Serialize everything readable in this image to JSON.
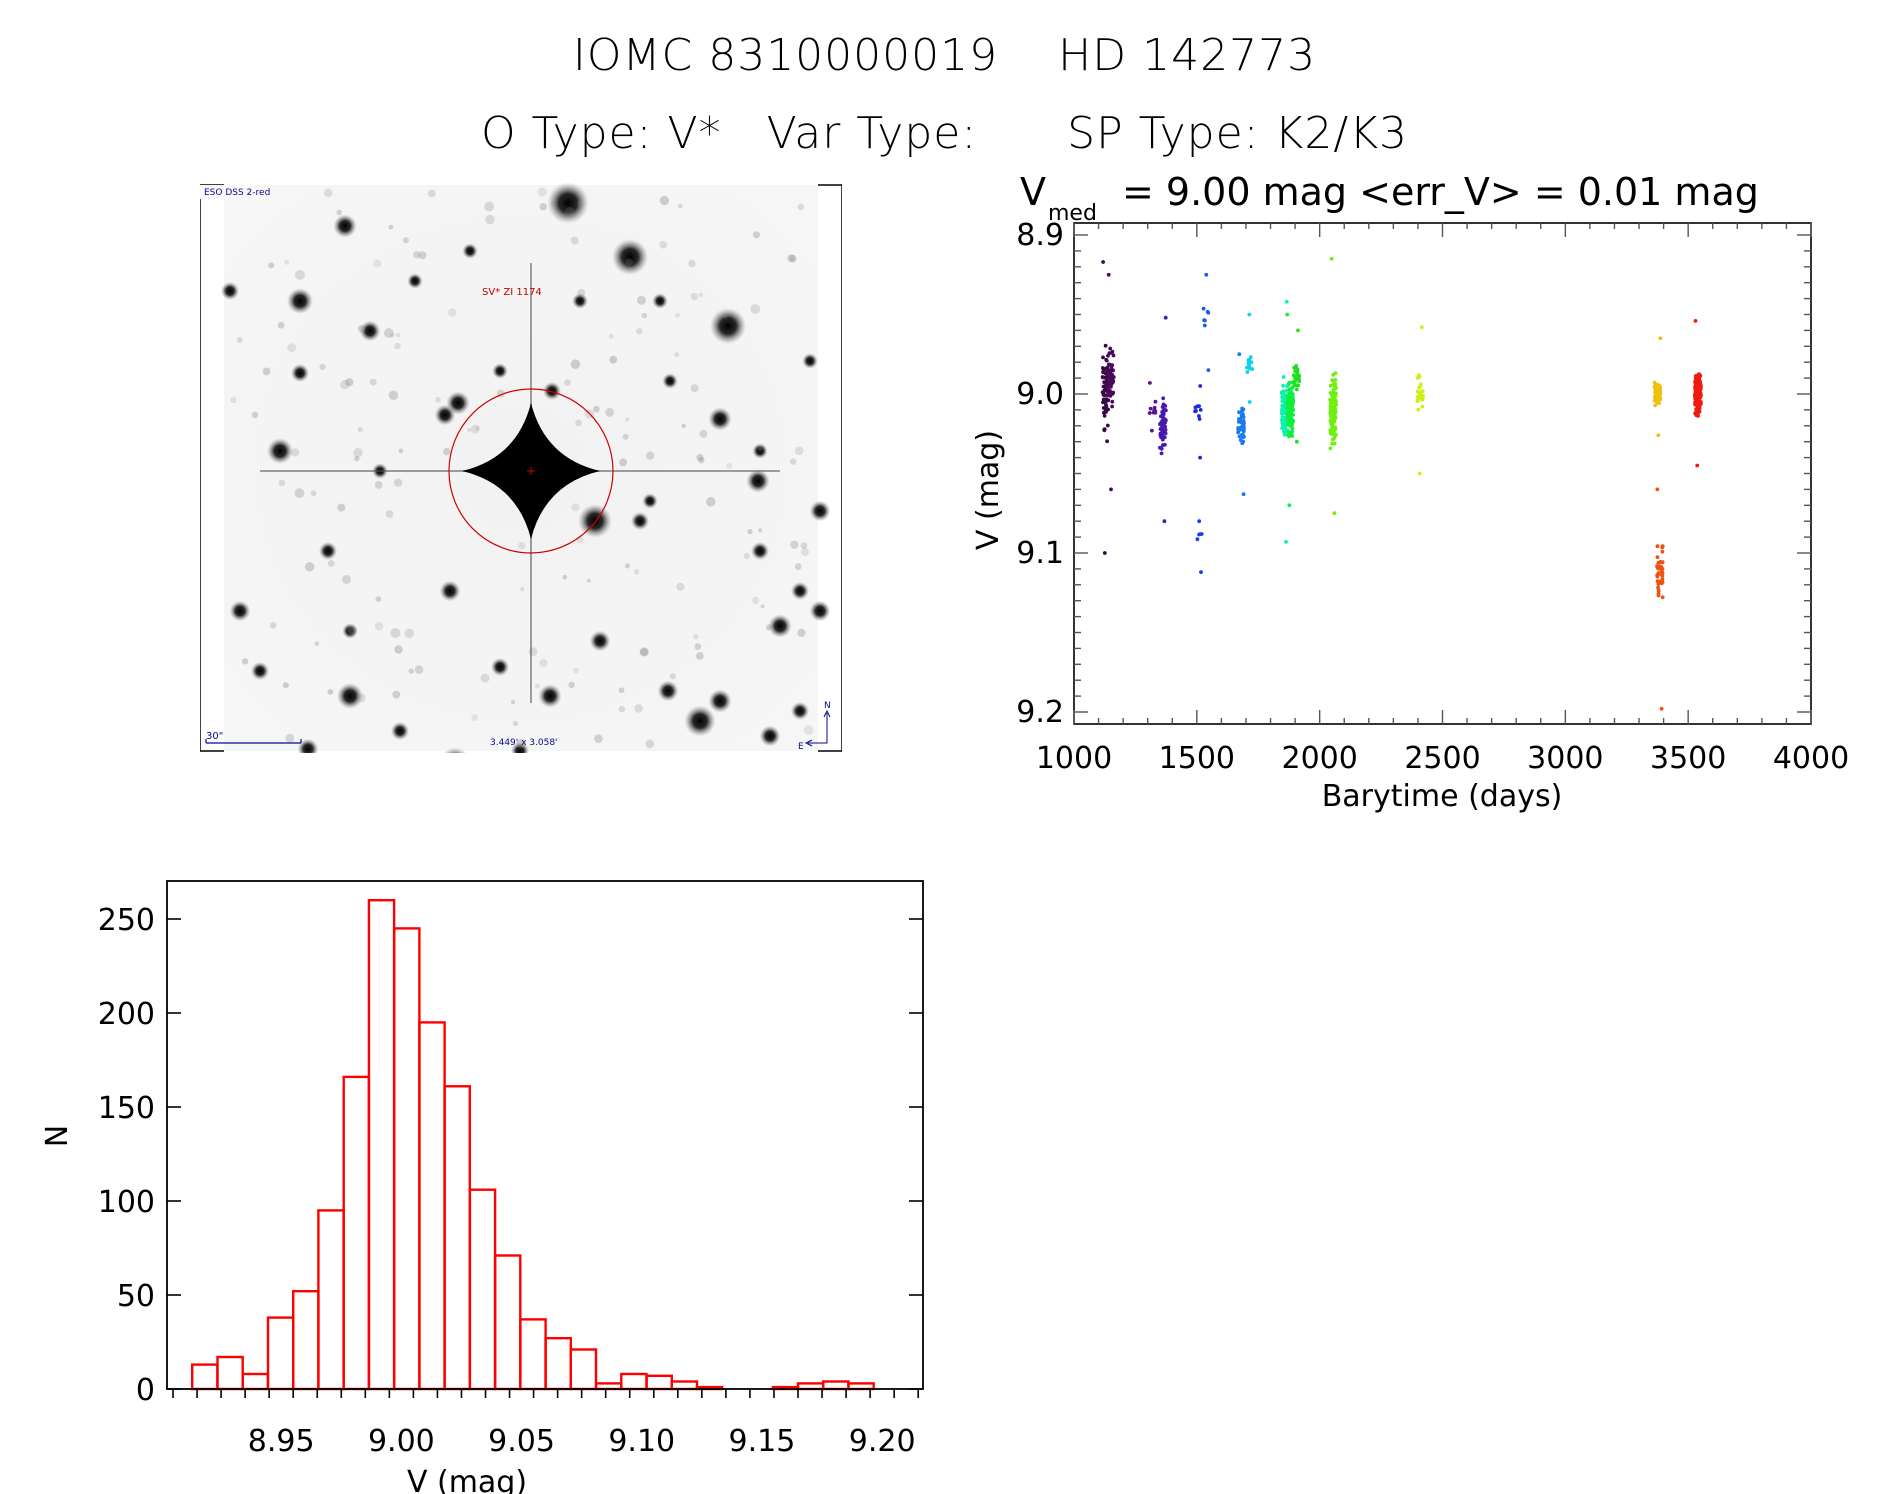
{
  "header": {
    "object_id": "IOMC 8310000019",
    "hd_name": "HD 142773",
    "otype_label": "O Type:",
    "otype_value": "V*",
    "vartype_label": "Var Type:",
    "vartype_value": "",
    "sptype_label": "SP Type:",
    "sptype_value": "K2/K3"
  },
  "finder_chart": {
    "survey_label": "ESO DSS 2-red",
    "target_label": "SV* ZI 1174",
    "scale_bar_label": "30\"",
    "field_size_label": "3.449' x 3.058'",
    "north_label": "N",
    "east_label": "E",
    "marker_color": "#cc0000",
    "annotation_color": "#0a0a8c"
  },
  "chart_data": [
    {
      "type": "scatter",
      "title": "V_med = 9.00 mag <err_V> = 0.01 mag",
      "title_parts": {
        "v": "V",
        "sub": "med",
        "rest": "= 9.00 mag <err_V> = 0.01 mag"
      },
      "xlabel": "Barytime (days)",
      "ylabel": "V (mag)",
      "xlim": [
        1000,
        4000
      ],
      "ylim": [
        9.2075,
        8.8925
      ],
      "y_inverted": true,
      "xticks": [
        1000,
        1500,
        2000,
        2500,
        3000,
        3500,
        4000
      ],
      "xtick_labels": [
        "1000",
        "1500",
        "2000",
        "2500",
        "3000",
        "3500",
        "4000"
      ],
      "yticks": [
        8.9,
        9.0,
        9.1,
        9.2
      ],
      "ytick_labels": [
        "8.9",
        "9.0",
        "9.1",
        "9.2"
      ],
      "grid": false,
      "colormap": "rainbow by epoch",
      "clusters": [
        {
          "x": 1128,
          "y_min": 8.917,
          "y_max": 9.1,
          "y_center": 9.0,
          "n": 70,
          "color": "#3a0a45"
        },
        {
          "x": 1150,
          "y_min": 8.925,
          "y_max": 9.06,
          "y_center": 8.99,
          "n": 60,
          "color": "#4a0a5a"
        },
        {
          "x": 1320,
          "y_min": 8.993,
          "y_max": 9.023,
          "y_center": 9.01,
          "n": 10,
          "color": "#5a1290"
        },
        {
          "x": 1362,
          "y_min": 8.952,
          "y_max": 9.08,
          "y_center": 9.02,
          "n": 60,
          "color": "#4a1ab0"
        },
        {
          "x": 1505,
          "y_min": 8.995,
          "y_max": 9.04,
          "y_center": 9.01,
          "n": 10,
          "color": "#1a2ae0"
        },
        {
          "x": 1510,
          "y_min": 9.08,
          "y_max": 9.112,
          "y_center": 9.09,
          "n": 6,
          "color": "#1a3af5"
        },
        {
          "x": 1537,
          "y_min": 8.925,
          "y_max": 8.985,
          "y_center": 8.95,
          "n": 8,
          "color": "#1a5af0"
        },
        {
          "x": 1680,
          "y_min": 8.975,
          "y_max": 9.063,
          "y_center": 9.02,
          "n": 45,
          "color": "#1a7af0"
        },
        {
          "x": 1715,
          "y_min": 8.95,
          "y_max": 9.005,
          "y_center": 8.98,
          "n": 14,
          "color": "#10d0f0"
        },
        {
          "x": 1858,
          "y_min": 8.942,
          "y_max": 9.093,
          "y_center": 9.01,
          "n": 80,
          "color": "#10f0b0"
        },
        {
          "x": 1880,
          "y_min": 8.95,
          "y_max": 9.07,
          "y_center": 9.01,
          "n": 110,
          "color": "#10ee40"
        },
        {
          "x": 1905,
          "y_min": 8.96,
          "y_max": 9.03,
          "y_center": 8.99,
          "n": 30,
          "color": "#20e020"
        },
        {
          "x": 2055,
          "y_min": 8.915,
          "y_max": 9.075,
          "y_center": 9.01,
          "n": 110,
          "color": "#70f010"
        },
        {
          "x": 2410,
          "y_min": 8.958,
          "y_max": 9.05,
          "y_center": 9.0,
          "n": 30,
          "color": "#d0f010"
        },
        {
          "x": 3375,
          "y_min": 8.965,
          "y_max": 9.026,
          "y_center": 9.0,
          "n": 60,
          "color": "#f0c010"
        },
        {
          "x": 3385,
          "y_min": 9.06,
          "y_max": 9.198,
          "y_center": 9.11,
          "n": 40,
          "color": "#f05010"
        },
        {
          "x": 3540,
          "y_min": 8.954,
          "y_max": 9.045,
          "y_center": 9.0,
          "n": 170,
          "color": "#f01a10"
        }
      ]
    },
    {
      "type": "bar",
      "subtype": "histogram",
      "title": "",
      "xlabel": "V (mag)",
      "ylabel": "N",
      "xlim": [
        8.9025,
        9.217
      ],
      "ylim": [
        0,
        272
      ],
      "xticks": [
        8.95,
        9.0,
        9.05,
        9.1,
        9.15,
        9.2
      ],
      "xtick_labels": [
        "8.95",
        "9.00",
        "9.05",
        "9.10",
        "9.15",
        "9.20"
      ],
      "yticks": [
        0,
        50,
        100,
        150,
        200,
        250
      ],
      "ytick_labels": [
        "0",
        "50",
        "100",
        "150",
        "200",
        "250"
      ],
      "bin_start": 8.913,
      "bin_width": 0.0105,
      "counts": [
        13,
        17,
        8,
        38,
        52,
        95,
        166,
        260,
        245,
        195,
        161,
        106,
        71,
        37,
        27,
        21,
        3,
        8,
        7,
        4,
        1,
        0,
        0,
        1,
        3,
        4,
        3
      ],
      "color": "#ff0000",
      "grid": false
    }
  ]
}
